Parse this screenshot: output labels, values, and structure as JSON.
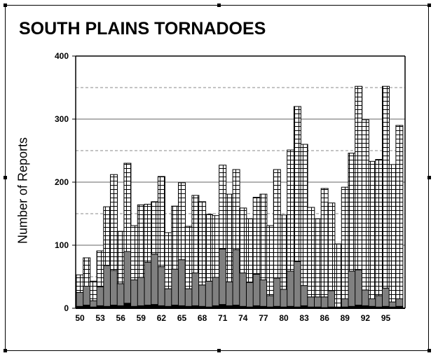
{
  "chart_data": {
    "type": "bar",
    "title": "SOUTH PLAINS TORNADOES",
    "xlabel": "",
    "ylabel": "Number of Reports",
    "ylim": [
      0,
      400
    ],
    "yticks": [
      0,
      100,
      200,
      300,
      400
    ],
    "x_tick_labels": [
      "50",
      "53",
      "56",
      "59",
      "62",
      "65",
      "68",
      "71",
      "74",
      "77",
      "80",
      "83",
      "86",
      "89",
      "92",
      "95"
    ],
    "grid": "horizontal solid at 100-unit ticks, dashed at 50-unit midpoints",
    "stacked": true,
    "categories": [
      1950,
      1951,
      1952,
      1953,
      1954,
      1955,
      1956,
      1957,
      1958,
      1959,
      1960,
      1961,
      1962,
      1963,
      1964,
      1965,
      1966,
      1967,
      1968,
      1969,
      1970,
      1971,
      1972,
      1973,
      1974,
      1975,
      1976,
      1977,
      1978,
      1979,
      1980,
      1981,
      1982,
      1983,
      1984,
      1985,
      1986,
      1987,
      1988,
      1989,
      1990,
      1991,
      1992,
      1993,
      1994,
      1995,
      1996,
      1997
    ],
    "series": [
      {
        "values": [
          3,
          5,
          2,
          4,
          3,
          5,
          4,
          8,
          3,
          4,
          5,
          6,
          4,
          3,
          5,
          4,
          3,
          4,
          3,
          2,
          4,
          6,
          4,
          5,
          3,
          2,
          4,
          3,
          2,
          3,
          2,
          3,
          2,
          4,
          2,
          2,
          1,
          2,
          1,
          2,
          3,
          5,
          4,
          3,
          2,
          3,
          2,
          3
        ]
      },
      {
        "values": [
          22,
          30,
          10,
          30,
          65,
          55,
          35,
          82,
          42,
          45,
          68,
          80,
          62,
          28,
          57,
          73,
          28,
          52,
          34,
          41,
          45,
          88,
          38,
          88,
          53,
          39,
          50,
          42,
          18,
          45,
          28,
          56,
          72,
          32,
          16,
          16,
          17,
          26,
          1,
          13,
          56,
          56,
          25,
          12,
          18,
          29,
          8,
          12
        ]
      },
      {
        "values": [
          28,
          45,
          31,
          57,
          93,
          152,
          83,
          140,
          86,
          115,
          92,
          83,
          143,
          89,
          100,
          122,
          99,
          123,
          132,
          106,
          98,
          133,
          139,
          127,
          103,
          101,
          122,
          136,
          111,
          172,
          118,
          192,
          246,
          224,
          142,
          124,
          172,
          139,
          100,
          177,
          187,
          291,
          270,
          218,
          216,
          320,
          218,
          275
        ]
      }
    ],
    "totals": [
      53,
      80,
      43,
      91,
      161,
      212,
      122,
      230,
      131,
      164,
      165,
      169,
      209,
      120,
      162,
      199,
      130,
      179,
      169,
      149,
      147,
      227,
      181,
      220,
      159,
      142,
      176,
      181,
      131,
      220,
      148,
      251,
      320,
      260,
      160,
      142,
      190,
      167,
      102,
      192,
      246,
      352,
      299,
      233,
      236,
      352,
      228,
      290
    ],
    "colors": {
      "bottom": "#000000",
      "middle": "#808080",
      "top": "#ffffff",
      "gridline": "#888888"
    }
  }
}
